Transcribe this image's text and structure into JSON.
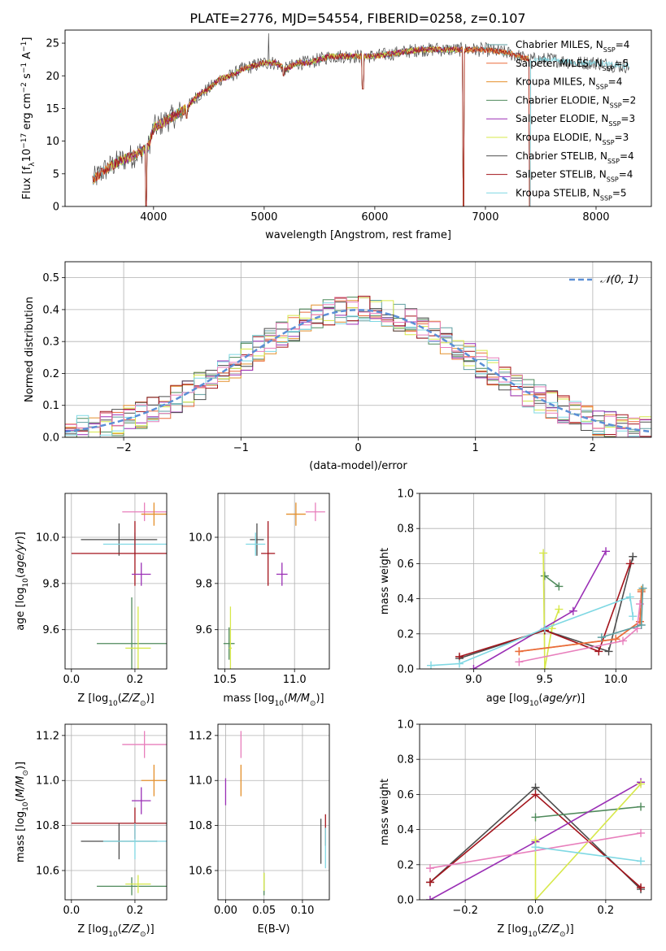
{
  "figure_title": "PLATE=2776, MJD=54554, FIBERID=0258, z=0.107",
  "colors": {
    "chabrier_miles": "#5e9ea0",
    "salpeter_miles": "#ea6b3c",
    "kroupa_miles": "#e4902c",
    "chabrier_elodie": "#4f8a5b",
    "salpeter_elodie": "#9a2fb5",
    "kroupa_elodie": "#d7e84a",
    "chabrier_stelib": "#4d4d4d",
    "salpeter_stelib": "#a3141c",
    "kroupa_stelib": "#7fd8e3",
    "pink": "#e87fbc",
    "normal_curve": "#5b8fd6"
  },
  "chart_data": [
    {
      "id": "spectrum",
      "type": "line",
      "xlabel": "wavelength [Angstrom, rest frame]",
      "ylabel": "Flux [f_λ 10^-17 erg cm^-2 s^-1 A^-1]",
      "xlim": [
        3200,
        8500
      ],
      "ylim": [
        0,
        27
      ],
      "xticks": [
        4000,
        5000,
        6000,
        7000,
        8000
      ],
      "yticks": [
        0,
        5,
        10,
        15,
        20,
        25
      ],
      "legend": {
        "placement": "top-right",
        "entries": [
          {
            "label": "Chabrier MILES, N",
            "sub": "SSP",
            "tail": "=4",
            "color": "chabrier_miles"
          },
          {
            "label": "Salpeter MILES, N",
            "sub": "SSP",
            "tail": "=5",
            "color": "salpeter_miles"
          },
          {
            "label": "Kroupa MILES, N",
            "sub": "SSP",
            "tail": "=4",
            "color": "kroupa_miles"
          },
          {
            "label": "Chabrier ELODIE, N",
            "sub": "SSP",
            "tail": "=2",
            "color": "chabrier_elodie"
          },
          {
            "label": "Salpeter ELODIE, N",
            "sub": "SSP",
            "tail": "=3",
            "color": "salpeter_elodie"
          },
          {
            "label": "Kroupa ELODIE, N",
            "sub": "SSP",
            "tail": "=3",
            "color": "kroupa_elodie"
          },
          {
            "label": "Chabrier STELIB, N",
            "sub": "SSP",
            "tail": "=4",
            "color": "chabrier_stelib"
          },
          {
            "label": "Salpeter STELIB, N",
            "sub": "SSP",
            "tail": "=4",
            "color": "salpeter_stelib"
          },
          {
            "label": "Kroupa STELIB, N",
            "sub": "SSP",
            "tail": "=5",
            "color": "kroupa_stelib"
          }
        ]
      },
      "continuum": [
        [
          3450,
          4
        ],
        [
          3550,
          5.5
        ],
        [
          3700,
          7
        ],
        [
          3850,
          8
        ],
        [
          3950,
          9
        ],
        [
          4000,
          12
        ],
        [
          4100,
          13
        ],
        [
          4200,
          14
        ],
        [
          4300,
          15
        ],
        [
          4400,
          17
        ],
        [
          4500,
          18
        ],
        [
          4600,
          19.5
        ],
        [
          4700,
          20
        ],
        [
          4800,
          21
        ],
        [
          4900,
          21.5
        ],
        [
          5000,
          22
        ],
        [
          5100,
          22
        ],
        [
          5200,
          21
        ],
        [
          5300,
          22
        ],
        [
          5400,
          22
        ],
        [
          5500,
          22.5
        ],
        [
          5600,
          23
        ],
        [
          5800,
          23
        ],
        [
          6000,
          23
        ],
        [
          6200,
          23.5
        ],
        [
          6400,
          24
        ],
        [
          6600,
          24
        ],
        [
          6800,
          24
        ],
        [
          7000,
          24
        ],
        [
          7200,
          23.5
        ],
        [
          7400,
          22.5
        ],
        [
          7600,
          22.5
        ],
        [
          7800,
          22
        ],
        [
          8000,
          22
        ],
        [
          8200,
          21.5
        ],
        [
          8300,
          21.5
        ]
      ],
      "absorption_lines": [
        [
          3934,
          0
        ],
        [
          4300,
          12.5
        ],
        [
          5175,
          19
        ],
        [
          5892,
          17
        ],
        [
          6800,
          0
        ],
        [
          7400,
          0
        ]
      ],
      "emission_spikes": [
        [
          5040,
          26.5
        ],
        [
          6563,
          25
        ]
      ]
    },
    {
      "id": "residual_histogram",
      "type": "histogram",
      "xlabel": "(data-model)/error",
      "ylabel": "Normed distribution",
      "xlim": [
        -2.5,
        2.5
      ],
      "ylim": [
        0,
        0.55
      ],
      "xticks": [
        -2,
        -1,
        0,
        1,
        2
      ],
      "yticks": [
        0.0,
        0.1,
        0.2,
        0.3,
        0.4,
        0.5
      ],
      "bin_width": 0.1,
      "legend": {
        "placement": "top-right",
        "label": "𝒩(0, 1)"
      }
    },
    {
      "id": "age_vs_Z",
      "type": "scatter",
      "xlabel": "Z [log10(Z/Z⊙)]",
      "ylabel": "age [log10(age/yr)]",
      "xlim": [
        -0.02,
        0.3
      ],
      "ylim": [
        9.43,
        10.19
      ],
      "xticks": [
        0.0,
        0.2
      ],
      "yticks": [
        9.6,
        9.8,
        10.0
      ],
      "points": [
        {
          "x": 0.23,
          "y": 10.11,
          "xerr": 0.07,
          "yerr": 0.04,
          "color": "pink"
        },
        {
          "x": 0.26,
          "y": 10.1,
          "xerr": 0.04,
          "yerr": 0.05,
          "color": "kroupa_miles"
        },
        {
          "x": 0.15,
          "y": 9.99,
          "xerr": 0.12,
          "yerr": 0.07,
          "color": "chabrier_stelib"
        },
        {
          "x": 0.2,
          "y": 9.97,
          "xerr": 0.1,
          "yerr": 0.05,
          "color": "kroupa_stelib"
        },
        {
          "x": 0.2,
          "y": 9.93,
          "xerr": 0.2,
          "yerr": 0.14,
          "color": "salpeter_stelib"
        },
        {
          "x": 0.22,
          "y": 9.84,
          "xerr": 0.03,
          "yerr": 0.05,
          "color": "salpeter_elodie"
        },
        {
          "x": 0.19,
          "y": 9.54,
          "xerr": 0.11,
          "yerr": 0.2,
          "color": "chabrier_elodie"
        },
        {
          "x": 0.21,
          "y": 9.52,
          "xerr": 0.04,
          "yerr": 0.18,
          "color": "kroupa_elodie"
        }
      ]
    },
    {
      "id": "age_vs_mass",
      "type": "scatter",
      "xlabel": "mass [log10(M/M⊙)]",
      "ylabel": "",
      "xlim": [
        10.45,
        11.25
      ],
      "ylim": [
        9.43,
        10.19
      ],
      "xticks": [
        10.5,
        11.0
      ],
      "yticks": [
        9.6,
        9.8,
        10.0
      ],
      "points": [
        {
          "x": 11.15,
          "y": 10.11,
          "xerr": 0.07,
          "yerr": 0.04,
          "color": "pink"
        },
        {
          "x": 11.01,
          "y": 10.1,
          "xerr": 0.07,
          "yerr": 0.05,
          "color": "kroupa_miles"
        },
        {
          "x": 10.73,
          "y": 9.99,
          "xerr": 0.05,
          "yerr": 0.07,
          "color": "chabrier_stelib"
        },
        {
          "x": 10.72,
          "y": 9.97,
          "xerr": 0.07,
          "yerr": 0.05,
          "color": "kroupa_stelib"
        },
        {
          "x": 10.81,
          "y": 9.93,
          "xerr": 0.05,
          "yerr": 0.14,
          "color": "salpeter_stelib"
        },
        {
          "x": 10.91,
          "y": 9.84,
          "xerr": 0.04,
          "yerr": 0.05,
          "color": "salpeter_elodie"
        },
        {
          "x": 10.53,
          "y": 9.54,
          "xerr": 0.04,
          "yerr": 0.07,
          "color": "chabrier_elodie"
        },
        {
          "x": 10.54,
          "y": 9.52,
          "xerr": 0.01,
          "yerr": 0.18,
          "color": "kroupa_elodie"
        }
      ]
    },
    {
      "id": "weight_vs_age",
      "type": "line",
      "xlabel": "age [log10(age/yr)]",
      "ylabel": "mass weight",
      "xlim": [
        8.62,
        10.25
      ],
      "ylim": [
        0,
        1
      ],
      "xticks": [
        9.0,
        9.5,
        10.0
      ],
      "yticks": [
        0.0,
        0.2,
        0.4,
        0.6,
        0.8,
        1.0
      ],
      "series": [
        {
          "color": "chabrier_elodie",
          "x": [
            9.5,
            9.6
          ],
          "y": [
            0.53,
            0.47
          ]
        },
        {
          "color": "kroupa_elodie",
          "x": [
            9.49,
            9.5,
            9.55,
            9.6
          ],
          "y": [
            0.66,
            0.0,
            0.23,
            0.34
          ]
        },
        {
          "color": "salpeter_elodie",
          "x": [
            9.0,
            9.7,
            9.93
          ],
          "y": [
            0.0,
            0.33,
            0.67
          ]
        },
        {
          "color": "chabrier_stelib",
          "x": [
            8.9,
            9.5,
            9.95,
            10.12
          ],
          "y": [
            0.06,
            0.22,
            0.1,
            0.64
          ]
        },
        {
          "color": "salpeter_stelib",
          "x": [
            8.9,
            9.5,
            9.88,
            10.1
          ],
          "y": [
            0.07,
            0.22,
            0.1,
            0.6
          ]
        },
        {
          "color": "kroupa_stelib",
          "x": [
            8.7,
            8.9,
            9.5,
            10.1,
            10.12
          ],
          "y": [
            0.02,
            0.03,
            0.23,
            0.41,
            0.3
          ]
        },
        {
          "color": "kroupa_miles",
          "x": [
            9.32,
            10.0,
            10.17,
            10.18
          ],
          "y": [
            0.1,
            0.17,
            0.27,
            0.45
          ]
        },
        {
          "color": "salpeter_miles",
          "x": [
            9.32,
            10.0,
            10.17,
            10.18
          ],
          "y": [
            0.1,
            0.17,
            0.27,
            0.44
          ]
        },
        {
          "color": "pink",
          "x": [
            9.32,
            10.05,
            10.15,
            10.17
          ],
          "y": [
            0.04,
            0.16,
            0.23,
            0.37
          ]
        },
        {
          "color": "chabrier_miles",
          "x": [
            9.9,
            10.18,
            10.19
          ],
          "y": [
            0.18,
            0.25,
            0.46
          ]
        }
      ]
    },
    {
      "id": "mass_vs_Z",
      "type": "scatter",
      "xlabel": "Z [log10(Z/Z⊙)]",
      "ylabel": "mass [log10(M/M⊙)]",
      "xlim": [
        -0.02,
        0.3
      ],
      "ylim": [
        10.47,
        11.25
      ],
      "xticks": [
        0.0,
        0.2
      ],
      "yticks": [
        10.6,
        10.8,
        11.0,
        11.2
      ],
      "points": [
        {
          "x": 0.23,
          "y": 11.16,
          "xerr": 0.07,
          "yerr": 0.06,
          "color": "pink"
        },
        {
          "x": 0.26,
          "y": 11.0,
          "xerr": 0.04,
          "yerr": 0.07,
          "color": "kroupa_miles"
        },
        {
          "x": 0.22,
          "y": 10.91,
          "xerr": 0.03,
          "yerr": 0.06,
          "color": "salpeter_elodie"
        },
        {
          "x": 0.2,
          "y": 10.81,
          "xerr": 0.2,
          "yerr": 0.07,
          "color": "salpeter_stelib"
        },
        {
          "x": 0.15,
          "y": 10.73,
          "xerr": 0.12,
          "yerr": 0.08,
          "color": "chabrier_stelib"
        },
        {
          "x": 0.2,
          "y": 10.73,
          "xerr": 0.1,
          "yerr": 0.08,
          "color": "kroupa_stelib"
        },
        {
          "x": 0.19,
          "y": 10.53,
          "xerr": 0.11,
          "yerr": 0.04,
          "color": "chabrier_elodie"
        },
        {
          "x": 0.21,
          "y": 10.54,
          "xerr": 0.04,
          "yerr": 0.04,
          "color": "kroupa_elodie"
        }
      ]
    },
    {
      "id": "mass_vs_EBV",
      "type": "scatter",
      "xlabel": "E(B-V)",
      "ylabel": "",
      "xlim": [
        -0.01,
        0.135
      ],
      "ylim": [
        10.47,
        11.25
      ],
      "xticks": [
        0.0,
        0.05,
        0.1
      ],
      "yticks": [
        10.6,
        10.8,
        11.0,
        11.2
      ],
      "points": [
        {
          "x": 0.02,
          "y": 11.16,
          "xerr": 0,
          "yerr": 0.06,
          "color": "pink"
        },
        {
          "x": 0.02,
          "y": 11.0,
          "xerr": 0,
          "yerr": 0.07,
          "color": "kroupa_miles"
        },
        {
          "x": 0.0,
          "y": 10.95,
          "xerr": 0,
          "yerr": 0.06,
          "color": "salpeter_elodie"
        },
        {
          "x": 0.13,
          "y": 10.78,
          "xerr": 0,
          "yerr": 0.07,
          "color": "salpeter_stelib"
        },
        {
          "x": 0.124,
          "y": 10.73,
          "xerr": 0,
          "yerr": 0.1,
          "color": "chabrier_stelib"
        },
        {
          "x": 0.13,
          "y": 10.7,
          "xerr": 0,
          "yerr": 0.09,
          "color": "kroupa_stelib"
        },
        {
          "x": 0.05,
          "y": 10.54,
          "xerr": 0,
          "yerr": 0.05,
          "color": "chabrier_elodie"
        },
        {
          "x": 0.05,
          "y": 10.55,
          "xerr": 0,
          "yerr": 0.04,
          "color": "kroupa_elodie"
        }
      ]
    },
    {
      "id": "weight_vs_Z",
      "type": "line",
      "xlabel": "Z [log10(Z/Z⊙)]",
      "ylabel": "mass weight",
      "xlim": [
        -0.33,
        0.33
      ],
      "ylim": [
        0,
        1
      ],
      "xticks": [
        -0.2,
        0.0,
        0.2
      ],
      "yticks": [
        0.0,
        0.2,
        0.4,
        0.6,
        0.8,
        1.0
      ],
      "series": [
        {
          "color": "chabrier_stelib",
          "x": [
            -0.3,
            0.0,
            0.3
          ],
          "y": [
            0.1,
            0.64,
            0.06
          ]
        },
        {
          "color": "salpeter_stelib",
          "x": [
            -0.3,
            0.0,
            0.3
          ],
          "y": [
            0.1,
            0.6,
            0.07
          ]
        },
        {
          "color": "chabrier_elodie",
          "x": [
            0.0,
            0.3
          ],
          "y": [
            0.47,
            0.53
          ]
        },
        {
          "color": "salpeter_elodie",
          "x": [
            -0.3,
            0.0,
            0.3
          ],
          "y": [
            0.0,
            0.33,
            0.67
          ]
        },
        {
          "color": "kroupa_elodie",
          "x": [
            0.0,
            0.0,
            0.3
          ],
          "y": [
            0.34,
            0.0,
            0.66
          ]
        },
        {
          "color": "pink",
          "x": [
            -0.3,
            0.3
          ],
          "y": [
            0.18,
            0.38
          ]
        },
        {
          "color": "kroupa_stelib",
          "x": [
            0.0,
            0.3
          ],
          "y": [
            0.3,
            0.22
          ]
        }
      ]
    }
  ]
}
